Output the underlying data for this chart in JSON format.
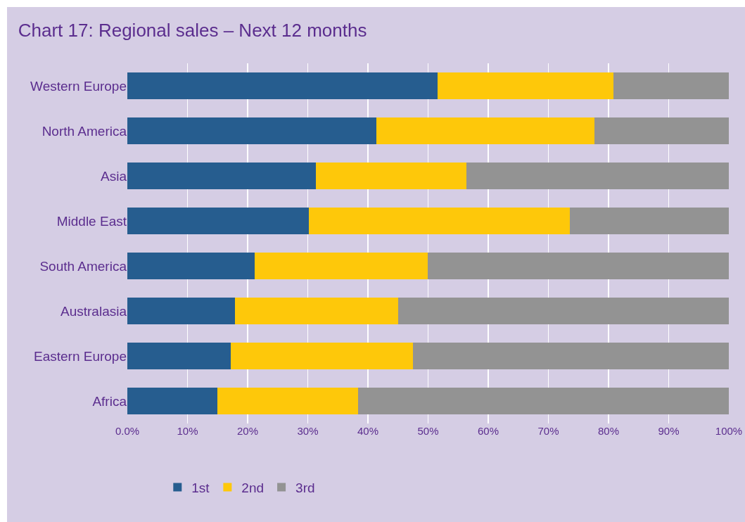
{
  "chart_data": {
    "type": "bar",
    "title": "Chart 17: Regional sales – Next 12 months",
    "orientation": "horizontal",
    "stacked": true,
    "categories": [
      "Western Europe",
      "North America",
      "Asia",
      "Middle East",
      "South America",
      "Australasia",
      "Eastern Europe",
      "Africa"
    ],
    "series": [
      {
        "name": "1st",
        "color": "#265d8f",
        "values": [
          51.6,
          41.4,
          31.3,
          30.2,
          21.2,
          17.9,
          17.2,
          15.0
        ]
      },
      {
        "name": "2nd",
        "color": "#fec80a",
        "values": [
          29.2,
          36.3,
          25.1,
          43.4,
          28.7,
          27.1,
          30.3,
          23.4
        ]
      },
      {
        "name": "3rd",
        "color": "#939393",
        "values": [
          19.2,
          22.3,
          43.6,
          26.4,
          50.1,
          55.0,
          52.5,
          61.6
        ]
      }
    ],
    "xlim": [
      0,
      100
    ],
    "xticks": [
      {
        "value": 0,
        "label": "0.0%"
      },
      {
        "value": 10,
        "label": "10%"
      },
      {
        "value": 20,
        "label": "20%"
      },
      {
        "value": 30,
        "label": "30%"
      },
      {
        "value": 40,
        "label": "40%"
      },
      {
        "value": 50,
        "label": "50%"
      },
      {
        "value": 60,
        "label": "60%"
      },
      {
        "value": 70,
        "label": "70%"
      },
      {
        "value": 80,
        "label": "80%"
      },
      {
        "value": 90,
        "label": "90%"
      },
      {
        "value": 100,
        "label": "100%"
      }
    ],
    "grid": "x",
    "legend": "bottom left"
  }
}
